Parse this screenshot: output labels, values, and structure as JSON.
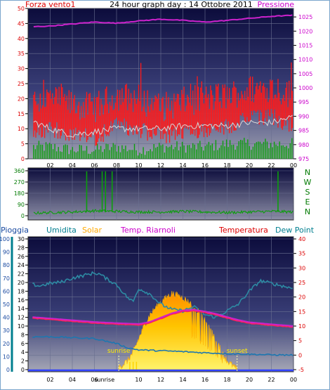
{
  "header": {
    "left_label": "Forza vento1",
    "title": "24 hour graph day : 14 Ottobre 2011",
    "right_label": "Pressione"
  },
  "colors": {
    "wind": "#ff1a1a",
    "gust": "#ff0000",
    "avg_wind": "#d8d8d8",
    "direction": "#0c9e0c",
    "pressure": "#cc22cc",
    "temperature": "#ff2255",
    "dewpoint": "#1d77b0",
    "humidity": "#2d8aa3",
    "solar": "#ffd400",
    "rain": "#3344ff",
    "label_red": "#dd0000",
    "label_magenta": "#cc00cc",
    "label_green": "#007a00",
    "label_teal": "#007f8f",
    "label_orange": "#ffaa00",
    "label_blue": "#1a4aa0"
  },
  "chart_data": [
    {
      "type": "line",
      "title": "24 hour graph day : 14 Ottobre 2011",
      "x_ticks": [
        "02",
        "04",
        "06",
        "08",
        "10",
        "12",
        "14",
        "16",
        "18",
        "20",
        "22",
        "00"
      ],
      "left_axis": {
        "label": "Forza vento1",
        "ylim": [
          0,
          50
        ],
        "ticks": [
          "0",
          "5",
          "10",
          "15",
          "20",
          "25",
          "30",
          "35",
          "40",
          "45",
          "50"
        ]
      },
      "right_axis": {
        "label": "Pressione",
        "ylim": [
          975,
          1028
        ],
        "ticks": [
          "975",
          "980",
          "985",
          "990",
          "995",
          "1000",
          "1005",
          "1010",
          "1015",
          "1020",
          "1025"
        ]
      },
      "series": [
        {
          "name": "Pressione",
          "hours": [
            0,
            2,
            4,
            6,
            8,
            10,
            12,
            14,
            16,
            18,
            20,
            22,
            24
          ],
          "values": [
            1021.5,
            1021.8,
            1022.5,
            1023.2,
            1022.8,
            1023.6,
            1024.2,
            1023.8,
            1023.2,
            1023.8,
            1024.5,
            1025.2,
            1025.6
          ]
        },
        {
          "name": "Forza vento1",
          "hours": [
            0,
            2,
            4,
            6,
            8,
            10,
            12,
            14,
            16,
            18,
            20,
            22,
            24
          ],
          "values": [
            16,
            17,
            15,
            14,
            18,
            17,
            14,
            16,
            17,
            18,
            20,
            21,
            18
          ]
        },
        {
          "name": "avg",
          "hours": [
            0,
            2,
            4,
            6,
            8,
            10,
            12,
            14,
            16,
            18,
            20,
            22,
            24
          ],
          "values": [
            13,
            10,
            8,
            9,
            10,
            10,
            10,
            11,
            11,
            11,
            12,
            12,
            14
          ]
        },
        {
          "name": "gust_baseline",
          "hours": [
            0,
            2,
            4,
            6,
            8,
            10,
            12,
            14,
            16,
            18,
            20,
            22,
            24
          ],
          "values": [
            4,
            4,
            3,
            3,
            4,
            3,
            4,
            4,
            4,
            5,
            5,
            5,
            5
          ]
        }
      ]
    },
    {
      "type": "line",
      "x_ticks": [
        "02",
        "04",
        "06",
        "08",
        "10",
        "12",
        "14",
        "16",
        "18",
        "20",
        "22",
        "00"
      ],
      "left_axis": {
        "ylim": [
          0,
          360
        ],
        "ticks": [
          "0",
          "90",
          "180",
          "270",
          "360"
        ]
      },
      "right_axis": {
        "ticks": [
          "N",
          "W",
          "S",
          "E",
          "N"
        ]
      },
      "series": [
        {
          "name": "direction",
          "hours": [
            0,
            2,
            4,
            6,
            8,
            10,
            12,
            14,
            16,
            18,
            20,
            22,
            24
          ],
          "values": [
            20,
            25,
            30,
            40,
            35,
            30,
            30,
            35,
            30,
            25,
            30,
            35,
            30
          ]
        }
      ],
      "spikes_hours": [
        5.3,
        6.7,
        7.0,
        7.6,
        22.6
      ]
    },
    {
      "type": "line",
      "x_ticks": [
        "02",
        "04",
        "06",
        "08",
        "10",
        "12",
        "14",
        "16",
        "18",
        "20",
        "22",
        "00"
      ],
      "legend": [
        "Pioggia",
        "Umidita",
        "Solar",
        "Temp. Riarnoli",
        "Temperatura",
        "Dew Point"
      ],
      "axis_pioggia": {
        "ylim": [
          0,
          100
        ],
        "ticks": [
          "0",
          "10",
          "20",
          "30",
          "40",
          "50",
          "60",
          "70",
          "80",
          "90",
          "100"
        ]
      },
      "axis_inner": {
        "ylim": [
          0,
          30
        ],
        "ticks": [
          "0",
          "2",
          "4",
          "6",
          "8",
          "10",
          "12",
          "14",
          "16",
          "18",
          "20",
          "22",
          "24",
          "26",
          "28",
          "30"
        ]
      },
      "right_axis": {
        "ylim": [
          -5,
          40
        ],
        "ticks": [
          "-5",
          "0",
          "5",
          "10",
          "15",
          "20",
          "25",
          "30",
          "35",
          "40"
        ]
      },
      "annotations": [
        "sunrise",
        "sunset"
      ],
      "x_marker": "sunrise",
      "sunrise_hour": 8.2,
      "sunset_hour": 18.9,
      "series": [
        {
          "name": "Umidita",
          "hours": [
            0,
            1,
            2,
            3,
            4,
            5,
            6,
            6.5,
            7,
            8,
            9,
            9.5,
            10,
            11,
            12,
            13,
            14,
            15,
            16,
            17,
            18,
            19,
            20,
            21,
            22,
            23,
            24
          ],
          "values": [
            66,
            64,
            66,
            67,
            70,
            72,
            74,
            73,
            70,
            65,
            55,
            52,
            62,
            58,
            50,
            46,
            45,
            48,
            42,
            40,
            45,
            50,
            60,
            68,
            66,
            64,
            62
          ]
        },
        {
          "name": "Temperatura",
          "hours": [
            0,
            2,
            4,
            6,
            8,
            10,
            11,
            12,
            13,
            14,
            15,
            16,
            17,
            18,
            19,
            20,
            22,
            24
          ],
          "values": [
            12.8,
            12.2,
            11.6,
            11.0,
            10.6,
            10.3,
            11.0,
            12.5,
            14.0,
            15.0,
            15.2,
            14.6,
            13.8,
            12.7,
            11.7,
            10.9,
            10.2,
            9.6
          ]
        },
        {
          "name": "Temp. Riarnoli",
          "hours": [
            0,
            2,
            4,
            6,
            8,
            10,
            11,
            12,
            13,
            14,
            15,
            16,
            17,
            18,
            19,
            20,
            22,
            24
          ],
          "values": [
            12.8,
            12.2,
            11.6,
            11.0,
            10.6,
            10.3,
            11.0,
            12.5,
            14.0,
            15.0,
            15.2,
            14.6,
            13.8,
            12.7,
            11.7,
            10.9,
            10.2,
            9.6
          ]
        },
        {
          "name": "Dew Point",
          "hours": [
            0,
            2,
            4,
            6,
            8,
            9,
            10,
            12,
            14,
            16,
            18,
            20,
            22,
            24
          ],
          "values": [
            6.3,
            6.3,
            6.0,
            5.7,
            4.0,
            2.5,
            1.8,
            1.5,
            1.2,
            0.8,
            0.5,
            0.3,
            0.1,
            0.0
          ]
        },
        {
          "name": "Solar",
          "hours": [
            8.2,
            9,
            9.5,
            10,
            10.5,
            11,
            11.5,
            12,
            12.5,
            13,
            13.5,
            14,
            14.5,
            15,
            15.5,
            16,
            16.5,
            17,
            17.5,
            18,
            18.9
          ],
          "values": [
            0.5,
            2,
            4,
            7,
            10,
            12.5,
            14,
            15.5,
            16.5,
            17.5,
            17,
            16.5,
            15.5,
            14.5,
            13,
            11,
            9,
            7,
            4,
            2,
            0
          ]
        },
        {
          "name": "Pioggia",
          "hours": [
            0,
            24
          ],
          "values": [
            0,
            0
          ]
        }
      ]
    }
  ]
}
